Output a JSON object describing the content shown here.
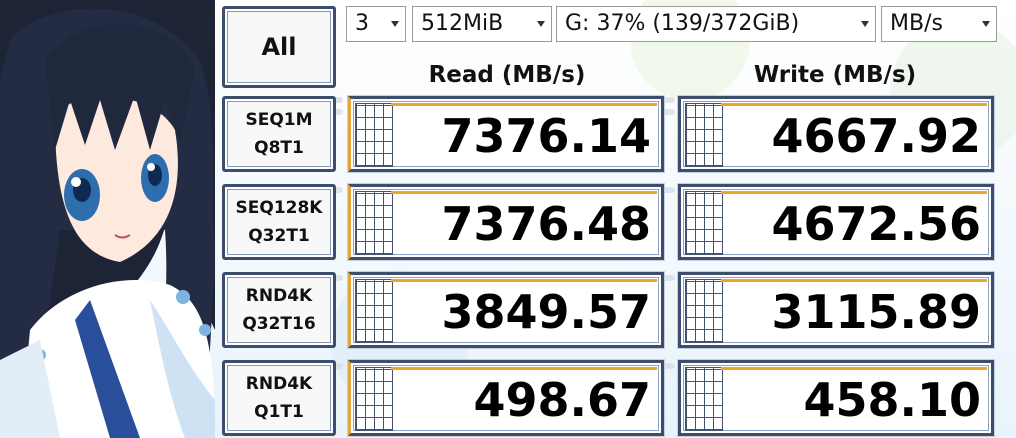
{
  "app": {
    "controls": {
      "count": "3",
      "size": "512MiB",
      "drive": "G: 37% (139/372GiB)",
      "unit": "MB/s"
    },
    "all_button_label": "All",
    "headers": {
      "read": "Read (MB/s)",
      "write": "Write (MB/s)"
    },
    "tests": [
      {
        "line1": "SEQ1M",
        "line2": "Q8T1",
        "read": "7376.14",
        "write": "4667.92"
      },
      {
        "line1": "SEQ128K",
        "line2": "Q32T1",
        "read": "7376.48",
        "write": "4672.56"
      },
      {
        "line1": "RND4K",
        "line2": "Q32T16",
        "read": "3849.57",
        "write": "3115.89"
      },
      {
        "line1": "RND4K",
        "line2": "Q1T1",
        "read": "498.67",
        "write": "458.10"
      }
    ],
    "colors": {
      "frame": "#3c4d6e",
      "accent_bar": "#e8a92a",
      "background": "#f4f8fc"
    }
  }
}
